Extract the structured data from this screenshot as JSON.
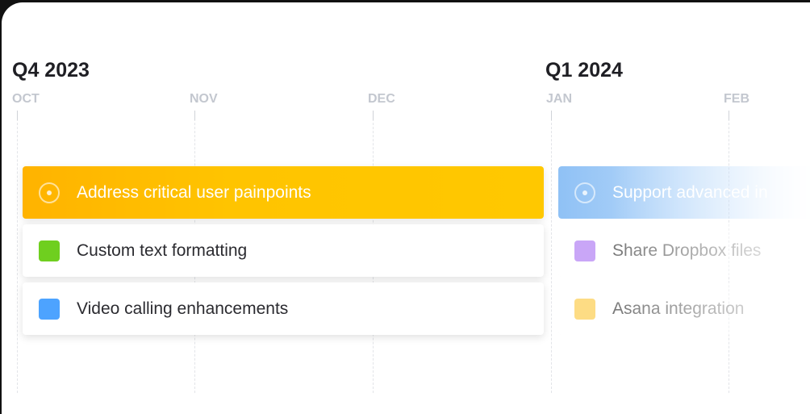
{
  "quarters": [
    {
      "label": "Q4 2023"
    },
    {
      "label": "Q1 2024"
    }
  ],
  "months": [
    "OCT",
    "NOV",
    "DEC",
    "JAN",
    "FEB"
  ],
  "q4_items": [
    {
      "label": "Address critical user painpoints",
      "type": "goal",
      "color": "#ffbe0b"
    },
    {
      "label": "Custom text formatting",
      "type": "feature",
      "color": "#6fcf1f"
    },
    {
      "label": "Video calling enhancements",
      "type": "feature",
      "color": "#4da3ff"
    }
  ],
  "q1_items": [
    {
      "label": "Support advanced in",
      "type": "goal",
      "color": "#8fc1f5"
    },
    {
      "label": "Share Dropbox files",
      "type": "feature",
      "color": "#c9a6f7"
    },
    {
      "label": "Asana integration",
      "type": "feature",
      "color": "#fddc84"
    }
  ]
}
